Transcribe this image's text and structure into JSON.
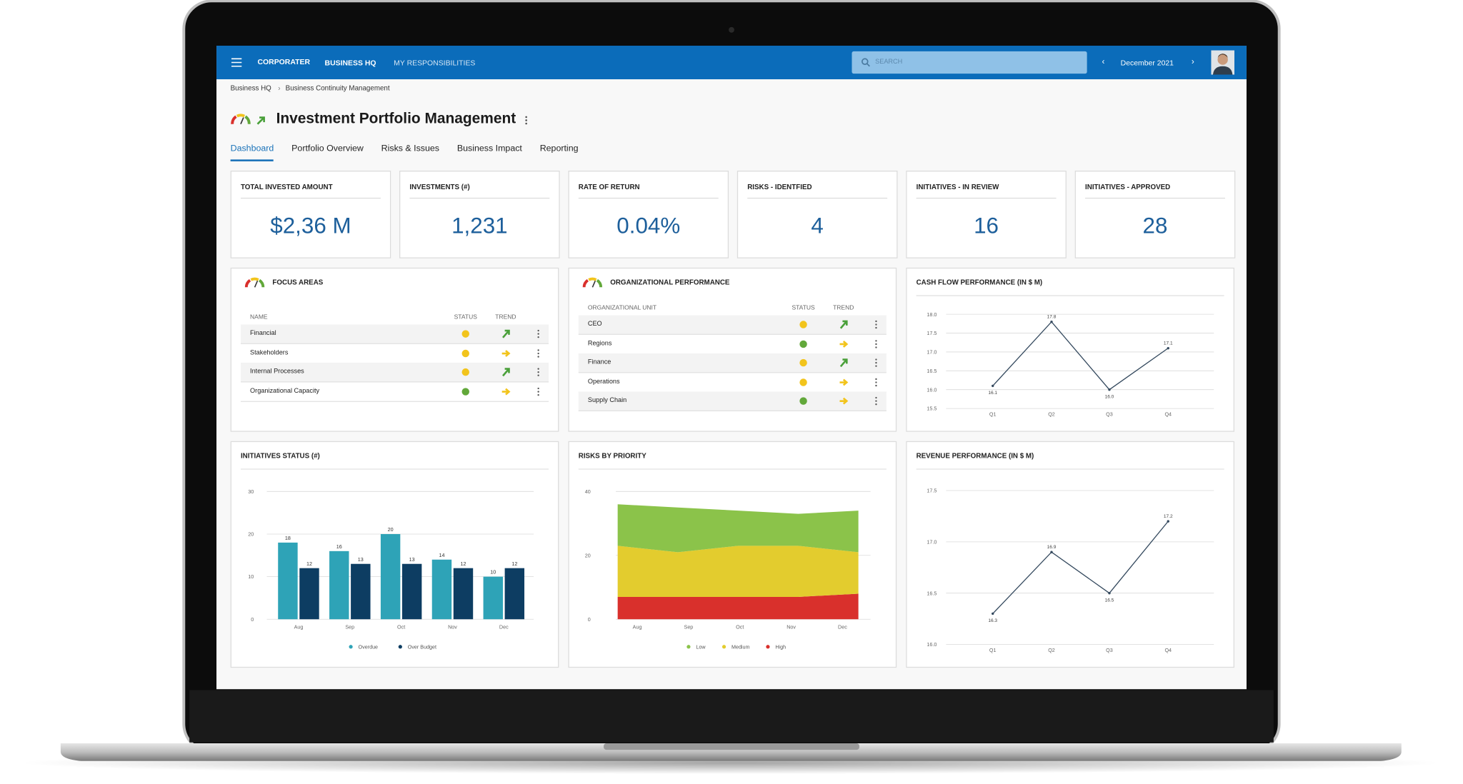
{
  "nav": {
    "brand": "CORPORATER",
    "links": [
      "BUSINESS HQ",
      "MY RESPONSIBILITIES"
    ],
    "search_placeholder": "SEARCH",
    "period": "December 2021"
  },
  "breadcrumb": [
    "Business HQ",
    "Business Continuity Management"
  ],
  "title": "Investment Portfolio Management",
  "tabs": [
    "Dashboard",
    "Portfolio Overview",
    "Risks & Issues",
    "Business Impact",
    "Reporting"
  ],
  "active_tab": 0,
  "kpis": [
    {
      "label": "TOTAL INVESTED AMOUNT",
      "value": "$2,36 M"
    },
    {
      "label": "INVESTMENTS (#)",
      "value": "1,231"
    },
    {
      "label": "RATE OF RETURN",
      "value": "0.04%"
    },
    {
      "label": "RISKS - IDENTFIED",
      "value": "4"
    },
    {
      "label": "INITIATIVES - IN REVIEW",
      "value": "16"
    },
    {
      "label": "INITIATIVES - APPROVED",
      "value": "28"
    }
  ],
  "tables": [
    {
      "title": "FOCUS AREAS",
      "columns": [
        "NAME",
        "STATUS",
        "TREND"
      ],
      "rows": [
        {
          "name": "Financial",
          "status": "#f2c41c",
          "trend": "up"
        },
        {
          "name": "Stakeholders",
          "status": "#f2c41c",
          "trend": "right"
        },
        {
          "name": "Internal Processes",
          "status": "#f2c41c",
          "trend": "up"
        },
        {
          "name": "Organizational Capacity",
          "status": "#62a83a",
          "trend": "right"
        }
      ]
    },
    {
      "title": "ORGANIZATIONAL PERFORMANCE",
      "columns": [
        "ORGANIZATIONAL UNIT",
        "STATUS",
        "TREND"
      ],
      "rows": [
        {
          "name": "CEO",
          "status": "#f2c41c",
          "trend": "up"
        },
        {
          "name": "Regions",
          "status": "#62a83a",
          "trend": "right"
        },
        {
          "name": "Finance",
          "status": "#f2c41c",
          "trend": "up"
        },
        {
          "name": "Operations",
          "status": "#f2c41c",
          "trend": "right"
        },
        {
          "name": "Supply Chain",
          "status": "#62a83a",
          "trend": "right"
        }
      ]
    }
  ],
  "chart_data": [
    {
      "type": "line",
      "title": "CASH FLOW PERFORMANCE (IN $ M)",
      "categories": [
        "Q1",
        "Q2",
        "Q3",
        "Q4"
      ],
      "values": [
        16.1,
        17.8,
        16.0,
        17.1
      ],
      "value_labels": [
        "16.1",
        "17.8",
        "16.0",
        "17.1"
      ],
      "color": "#34495e",
      "ylim": [
        15.5,
        18.0
      ],
      "yticks": [
        15.5,
        {
          "value": 16,
          "label": "16.0"
        },
        16.5,
        {
          "value": 17,
          "label": "17.0"
        },
        17.5,
        {
          "value": 18,
          "label": "18.0"
        }
      ],
      "grid": true
    },
    {
      "type": "bar",
      "title": "INITIATIVES STATUS (#)",
      "categories": [
        "Aug",
        "Sep",
        "Oct",
        "Nov",
        "Dec"
      ],
      "series": [
        {
          "name": "Overdue",
          "color": "#2ea3b7",
          "values": [
            18,
            16,
            20,
            14,
            10
          ]
        },
        {
          "name": "Over Budget",
          "color": "#0d3d62",
          "values": [
            12,
            13,
            13,
            12,
            12
          ]
        }
      ],
      "ylim": [
        0,
        30
      ],
      "yticks": [
        0,
        10,
        20,
        30
      ],
      "grid": true
    },
    {
      "type": "area",
      "stacked": true,
      "title": "RISKS BY PRIORITY",
      "categories": [
        "Aug",
        "Sep",
        "Oct",
        "Nov",
        "Dec"
      ],
      "series": [
        {
          "name": "Low",
          "color": "#8bc34a",
          "values": [
            13,
            14,
            11,
            10,
            13
          ]
        },
        {
          "name": "Medium",
          "color": "#e3cc2e",
          "values": [
            16,
            14,
            16,
            16,
            13
          ]
        },
        {
          "name": "High",
          "color": "#d9302c",
          "values": [
            7,
            7,
            7,
            7,
            8
          ]
        }
      ],
      "ylim": [
        0,
        40
      ],
      "yticks": [
        0,
        20,
        40
      ],
      "grid": true
    },
    {
      "type": "line",
      "title": "REVENUE PERFORMANCE (IN $ M)",
      "categories": [
        "Q1",
        "Q2",
        "Q3",
        "Q4"
      ],
      "values": [
        16.3,
        16.9,
        16.5,
        17.2
      ],
      "color": "#34495e",
      "ylim": [
        16.0,
        17.5
      ],
      "yticks": [
        {
          "value": 16,
          "label": "16.0"
        },
        16.5,
        {
          "value": 17,
          "label": "17.0"
        },
        17.5
      ],
      "grid": true
    }
  ]
}
